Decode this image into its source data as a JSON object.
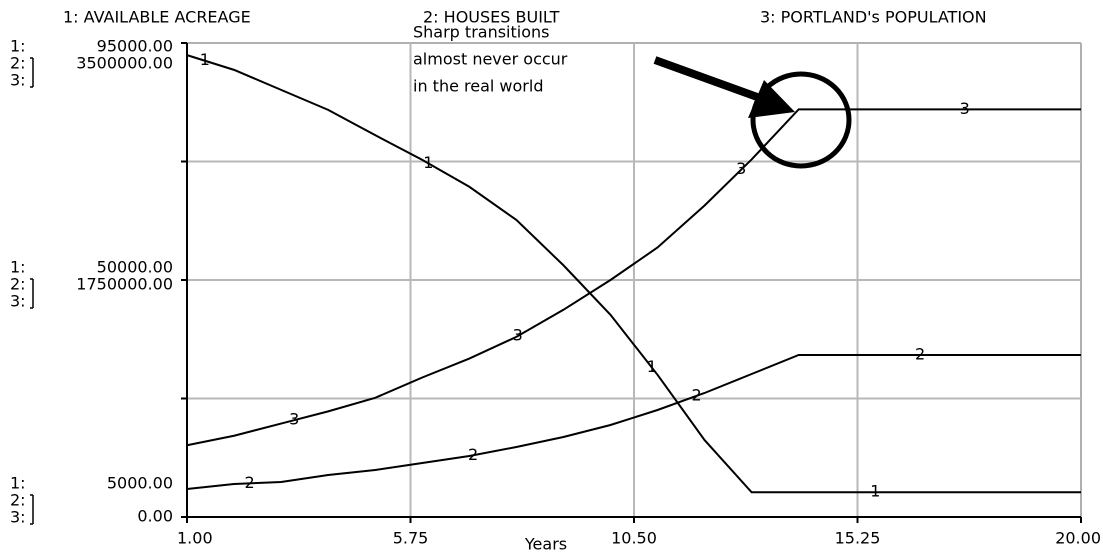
{
  "chart_data": {
    "type": "line",
    "annotation": [
      "Sharp transitions",
      "almost never occur",
      "in the real world"
    ],
    "xlabel": "Years",
    "axis_keys": [
      "1:",
      "2:",
      "3:"
    ],
    "x": [
      1,
      2,
      3,
      4,
      5,
      6,
      7,
      8,
      9,
      10,
      11,
      12,
      13,
      14,
      15,
      16,
      17,
      18,
      19,
      20
    ],
    "xlim": [
      1,
      20
    ],
    "xticks": [
      {
        "value": 1,
        "label": "1.00"
      },
      {
        "value": 5.75,
        "label": "5.75"
      },
      {
        "value": 10.5,
        "label": "10.50"
      },
      {
        "value": 15.25,
        "label": "15.25"
      },
      {
        "value": 20,
        "label": "20.00"
      }
    ],
    "ylim": [
      5000,
      95000
    ],
    "yticks": [
      {
        "value": 5000,
        "label": "5000.00"
      },
      {
        "value": 27500,
        "label": null
      },
      {
        "value": 50000,
        "label": "50000.00"
      },
      {
        "value": 72500,
        "label": null
      },
      {
        "value": 95000,
        "label": "95000.00"
      }
    ],
    "y2lim": [
      0,
      3500000
    ],
    "y2ticks": [
      {
        "value": 0,
        "label": "0.00"
      },
      {
        "value": 875000,
        "label": null
      },
      {
        "value": 1750000,
        "label": "1750000.00"
      },
      {
        "value": 2625000,
        "label": null
      },
      {
        "value": 3500000,
        "label": "3500000.00"
      }
    ],
    "grid": true,
    "series": [
      {
        "name": "1: AVAILABLE ACREAGE",
        "marker": "1",
        "color": "#000000",
        "axis": "y",
        "values": [
          92700,
          89900,
          86100,
          82300,
          77500,
          72800,
          67700,
          61400,
          52800,
          43400,
          32000,
          19600,
          9700,
          9700,
          9700,
          9700,
          9700,
          9700,
          9700,
          9700
        ]
      },
      {
        "name": "2: HOUSES BUILT",
        "marker": "2",
        "color": "#000000",
        "axis": "y2",
        "values": [
          206800,
          243700,
          258400,
          310100,
          347000,
          398700,
          450400,
          516900,
          590700,
          679300,
          790100,
          915600,
          1055900,
          1196200,
          1196200,
          1196200,
          1196200,
          1196200,
          1196200,
          1196200
        ]
      },
      {
        "name": "3: PORTLAND's POPULATION",
        "marker": "3",
        "color": "#000000",
        "axis": "y2",
        "values": [
          530000,
          600000,
          690000,
          780000,
          880000,
          1030000,
          1170000,
          1330000,
          1530000,
          1750000,
          1990000,
          2300000,
          2640000,
          3010000,
          3010000,
          3010000,
          3010000,
          3010000,
          3010000,
          3010000
        ]
      }
    ]
  }
}
